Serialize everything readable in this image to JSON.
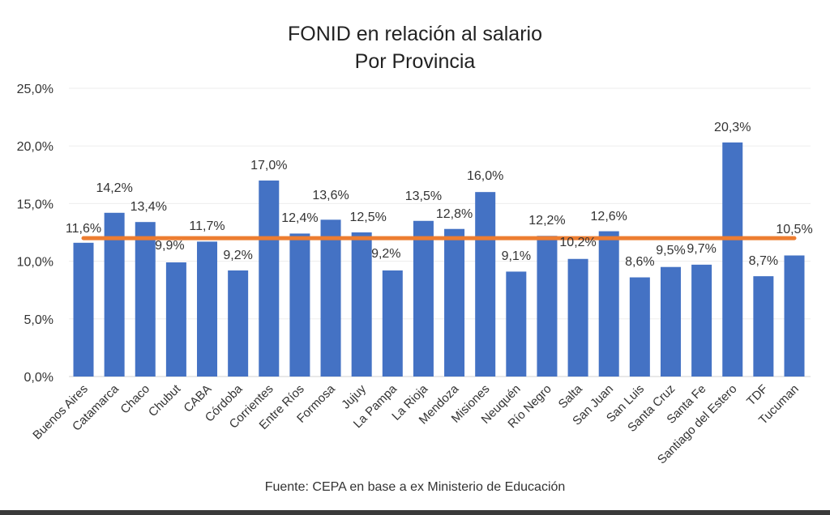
{
  "chart_data": {
    "type": "bar",
    "title": "FONID en relación al salario",
    "subtitle": "Por Provincia",
    "source": "Fuente: CEPA en base a ex Ministerio de Educación",
    "categories": [
      "Buenos Aires",
      "Catamarca",
      "Chaco",
      "Chubut",
      "CABA",
      "Córdoba",
      "Corrientes",
      "Entre Ríos",
      "Formosa",
      "Jujuy",
      "La Pampa",
      "La Rioja",
      "Mendoza",
      "Misiones",
      "Neuquén",
      "Río Negro",
      "Salta",
      "San Juan",
      "San Luis",
      "Santa Cruz",
      "Santa Fe",
      "Santiago del Estero",
      "TDF",
      "Tucuman"
    ],
    "values": [
      11.6,
      14.2,
      13.4,
      9.9,
      11.7,
      9.2,
      17.0,
      12.4,
      13.6,
      12.5,
      9.2,
      13.5,
      12.8,
      16.0,
      9.1,
      12.2,
      10.2,
      12.6,
      8.6,
      9.5,
      9.7,
      20.3,
      8.7,
      10.5
    ],
    "data_labels": [
      "11,6%",
      "14,2%",
      "13,4%",
      "9,9%",
      "11,7%",
      "9,2%",
      "17,0%",
      "12,4%",
      "13,6%",
      "12,5%",
      "9,2%",
      "13,5%",
      "12,8%",
      "16,0%",
      "9,1%",
      "12,2%",
      "10,2%",
      "12,6%",
      "8,6%",
      "9,5%",
      "9,7%",
      "20,3%",
      "8,7%",
      "10,5%"
    ],
    "reference_line": {
      "value": 12.0,
      "color": "#ED7D31"
    },
    "bar_color": "#4472C4",
    "ylim": [
      0,
      25
    ],
    "yticks": [
      0,
      5,
      10,
      15,
      20,
      25
    ],
    "ytick_labels": [
      "0,0%",
      "5,0%",
      "10,0%",
      "15,0%",
      "20,0%",
      "25,0%"
    ],
    "grid": true,
    "legend": "none",
    "xlabel": "",
    "ylabel": ""
  }
}
